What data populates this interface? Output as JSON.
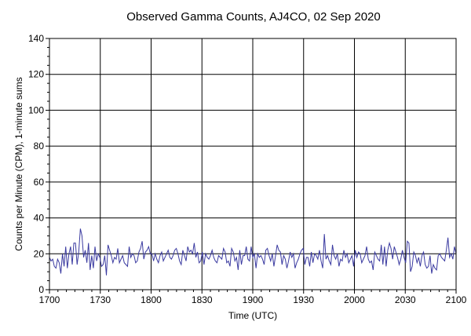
{
  "chart_data": {
    "type": "line",
    "title": "Observed Gamma Counts, AJ4CO, 02 Sep 2020",
    "xlabel": "Time (UTC)",
    "ylabel": "Counts per Minute (CPM), 1-minute sums",
    "x_tick_labels": [
      "1700",
      "1730",
      "1800",
      "1830",
      "1900",
      "1930",
      "2000",
      "2030",
      "2100"
    ],
    "y_ticks": [
      0,
      20,
      40,
      60,
      80,
      100,
      120,
      140
    ],
    "ylim": [
      0,
      140
    ],
    "x_range_minutes": [
      0,
      240
    ],
    "x_start": "1700",
    "grid": true,
    "legend": "none",
    "series_color": "#3a3aa0",
    "series": [
      {
        "values": [
          18,
          16,
          17,
          13,
          12,
          17,
          15,
          9,
          20,
          13,
          24,
          12,
          20,
          24,
          14,
          26,
          26,
          14,
          21,
          34,
          30,
          18,
          22,
          15,
          26,
          11,
          19,
          12,
          24,
          16,
          20,
          18,
          13,
          14,
          19,
          8,
          25,
          22,
          19,
          15,
          18,
          17,
          23,
          15,
          17,
          19,
          15,
          14,
          13,
          24,
          18,
          20,
          19,
          15,
          16,
          21,
          23,
          27,
          17,
          21,
          22,
          24,
          20,
          20,
          16,
          20,
          17,
          15,
          19,
          21,
          16,
          18,
          20,
          22,
          18,
          17,
          19,
          22,
          23,
          20,
          16,
          14,
          22,
          19,
          16,
          24,
          21,
          22,
          20,
          26,
          18,
          21,
          15,
          16,
          21,
          14,
          20,
          18,
          17,
          19,
          22,
          18,
          16,
          15,
          19,
          18,
          17,
          23,
          21,
          15,
          16,
          13,
          23,
          21,
          16,
          18,
          11,
          22,
          14,
          19,
          19,
          24,
          17,
          16,
          24,
          18,
          20,
          12,
          20,
          18,
          19,
          17,
          14,
          22,
          23,
          19,
          16,
          20,
          13,
          19,
          25,
          22,
          21,
          14,
          19,
          17,
          12,
          16,
          21,
          18,
          20,
          12,
          15,
          17,
          20,
          22,
          23,
          14,
          18,
          18,
          13,
          21,
          15,
          20,
          19,
          17,
          22,
          16,
          12,
          31,
          17,
          19,
          16,
          14,
          25,
          19,
          17,
          20,
          13,
          17,
          16,
          22,
          18,
          20,
          15,
          17,
          19,
          13,
          22,
          18,
          21,
          20,
          15,
          17,
          19,
          24,
          17,
          15,
          16,
          11,
          21,
          19,
          17,
          16,
          25,
          14,
          24,
          13,
          22,
          26,
          23,
          17,
          24,
          21,
          18,
          14,
          17,
          22,
          18,
          15,
          27,
          26,
          10,
          13,
          21,
          19,
          15,
          18,
          13,
          19,
          21,
          14,
          12,
          13,
          19,
          9,
          14,
          12,
          11,
          19,
          20,
          18,
          17,
          16,
          22,
          29,
          18,
          20,
          17,
          24,
          20
        ]
      }
    ]
  }
}
